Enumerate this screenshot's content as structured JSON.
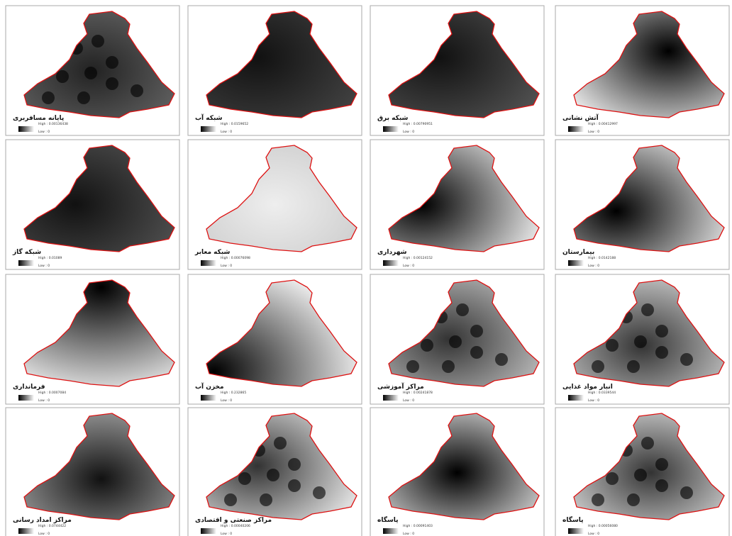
{
  "panels": [
    {
      "title": "پایانه مسافربری",
      "high": "High : 0.00136438",
      "low": "Low : 0"
    },
    {
      "title": "شبکه آب",
      "high": "High : 0.0159652",
      "low": "Low : 0"
    },
    {
      "title": "شبکه برق",
      "high": "High : 0.00790951",
      "low": "Low : 0"
    },
    {
      "title": "آتش نشانی",
      "high": "High : 0.00412997",
      "low": "Low : 0"
    },
    {
      "title": "شبکه گاز",
      "high": "High : 0.01089",
      "low": "Low : 0"
    },
    {
      "title": "شبکه معابر",
      "high": "High : 0.00076098",
      "low": "Low : 0"
    },
    {
      "title": "شهرداری",
      "high": "High : 0.00124152",
      "low": "Low : 0"
    },
    {
      "title": "بیمارستان",
      "high": "High : 0.0142188",
      "low": "Low : 0"
    },
    {
      "title": "فرمانداری",
      "high": "High : 0.0007084",
      "low": "Low : 0"
    },
    {
      "title": "مخزن آب",
      "high": "High : 0.232865",
      "low": "Low : 0"
    },
    {
      "title": "مراکز آموزشی",
      "high": "High : 0.00241878",
      "low": "Low : 0"
    },
    {
      "title": "انبار مواد غذایی",
      "high": "High : 0.0339544",
      "low": "Low : 0"
    },
    {
      "title": "مراکز امداد رسانی",
      "high": "High : 0.0744422",
      "low": "Low : 0"
    },
    {
      "title": "مراکز صنعتی و اقتصادی",
      "high": "High : 0.00040206",
      "low": "Low : 0"
    },
    {
      "title": "پاسگاه",
      "high": "High : 0.00091403",
      "low": "Low : 0"
    },
    {
      "title": "پاسگاه",
      "high": "High : 0.00056080",
      "low": "Low : 0"
    }
  ]
}
